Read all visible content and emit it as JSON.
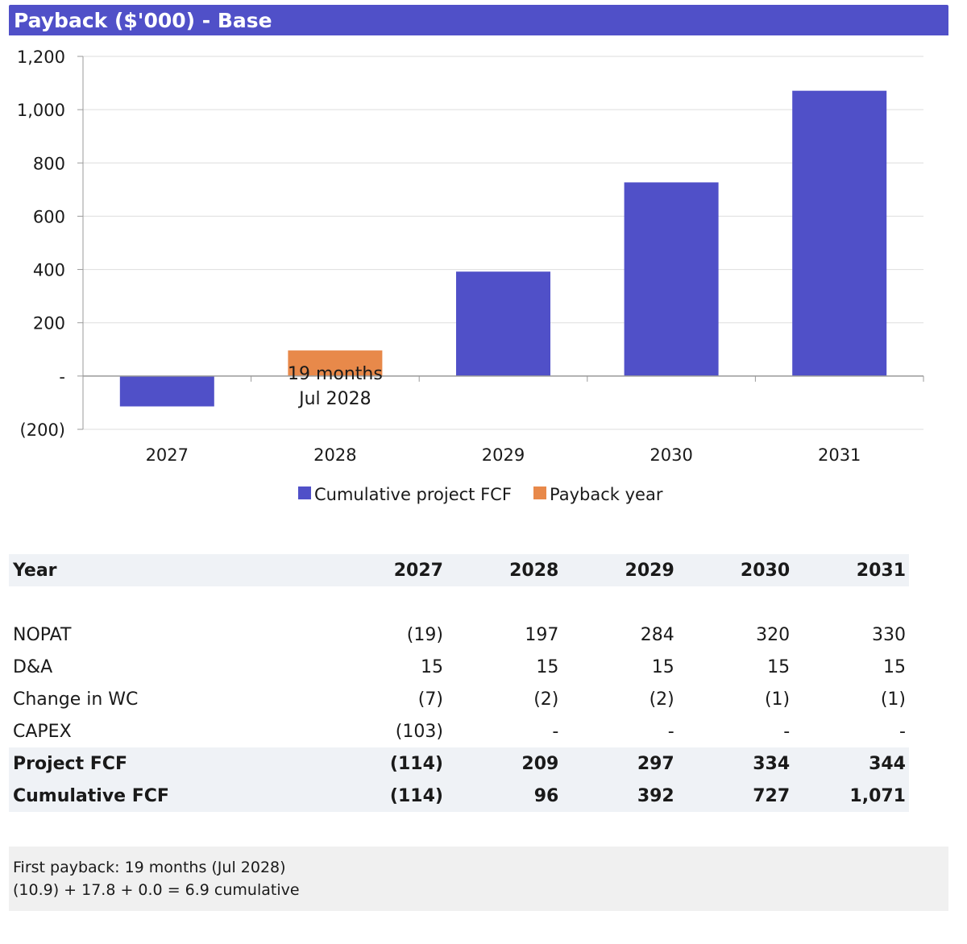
{
  "title": "Payback ($'000) - Base",
  "colors": {
    "title_bg": "#5050c8",
    "cumulative": "#5050c8",
    "payback": "#e8894a",
    "table_band": "#eff2f6",
    "footer_bg": "#f0f0f0"
  },
  "chart_data": {
    "type": "bar",
    "categories": [
      "2027",
      "2028",
      "2029",
      "2030",
      "2031"
    ],
    "series": [
      {
        "name": "Cumulative project FCF",
        "values": [
          -114,
          null,
          392,
          727,
          1071
        ],
        "color": "#5050c8"
      },
      {
        "name": "Payback year",
        "values": [
          null,
          96,
          null,
          null,
          null
        ],
        "color": "#e8894a"
      }
    ],
    "ylim": [
      -200,
      1200
    ],
    "yticks": [
      -200,
      0,
      200,
      400,
      600,
      800,
      1000,
      1200
    ],
    "ytick_labels": [
      "(200)",
      "-",
      "200",
      "400",
      "600",
      "800",
      "1,000",
      "1,200"
    ],
    "grid": true,
    "legend_position": "bottom",
    "annotation": {
      "category": "2028",
      "lines": [
        "19 months",
        "Jul 2028"
      ]
    }
  },
  "table": {
    "header": {
      "label": "Year",
      "years": [
        "2027",
        "2028",
        "2029",
        "2030",
        "2031"
      ]
    },
    "rows": [
      {
        "label": "NOPAT",
        "values": [
          "(19)",
          "197",
          "284",
          "320",
          "330"
        ]
      },
      {
        "label": "D&A",
        "values": [
          "15",
          "15",
          "15",
          "15",
          "15"
        ]
      },
      {
        "label": "Change in WC",
        "values": [
          "(7)",
          "(2)",
          "(2)",
          "(1)",
          "(1)"
        ]
      },
      {
        "label": "CAPEX",
        "values": [
          "(103)",
          "-",
          "-",
          "-",
          "-"
        ]
      }
    ],
    "totals": [
      {
        "label": "Project FCF",
        "values": [
          "(114)",
          "209",
          "297",
          "334",
          "344"
        ]
      },
      {
        "label": "Cumulative FCF",
        "values": [
          "(114)",
          "96",
          "392",
          "727",
          "1,071"
        ]
      }
    ]
  },
  "footer": {
    "line1": "First payback: 19 months (Jul 2028)",
    "line2": "(10.9) + 17.8 + 0.0 = 6.9 cumulative"
  }
}
